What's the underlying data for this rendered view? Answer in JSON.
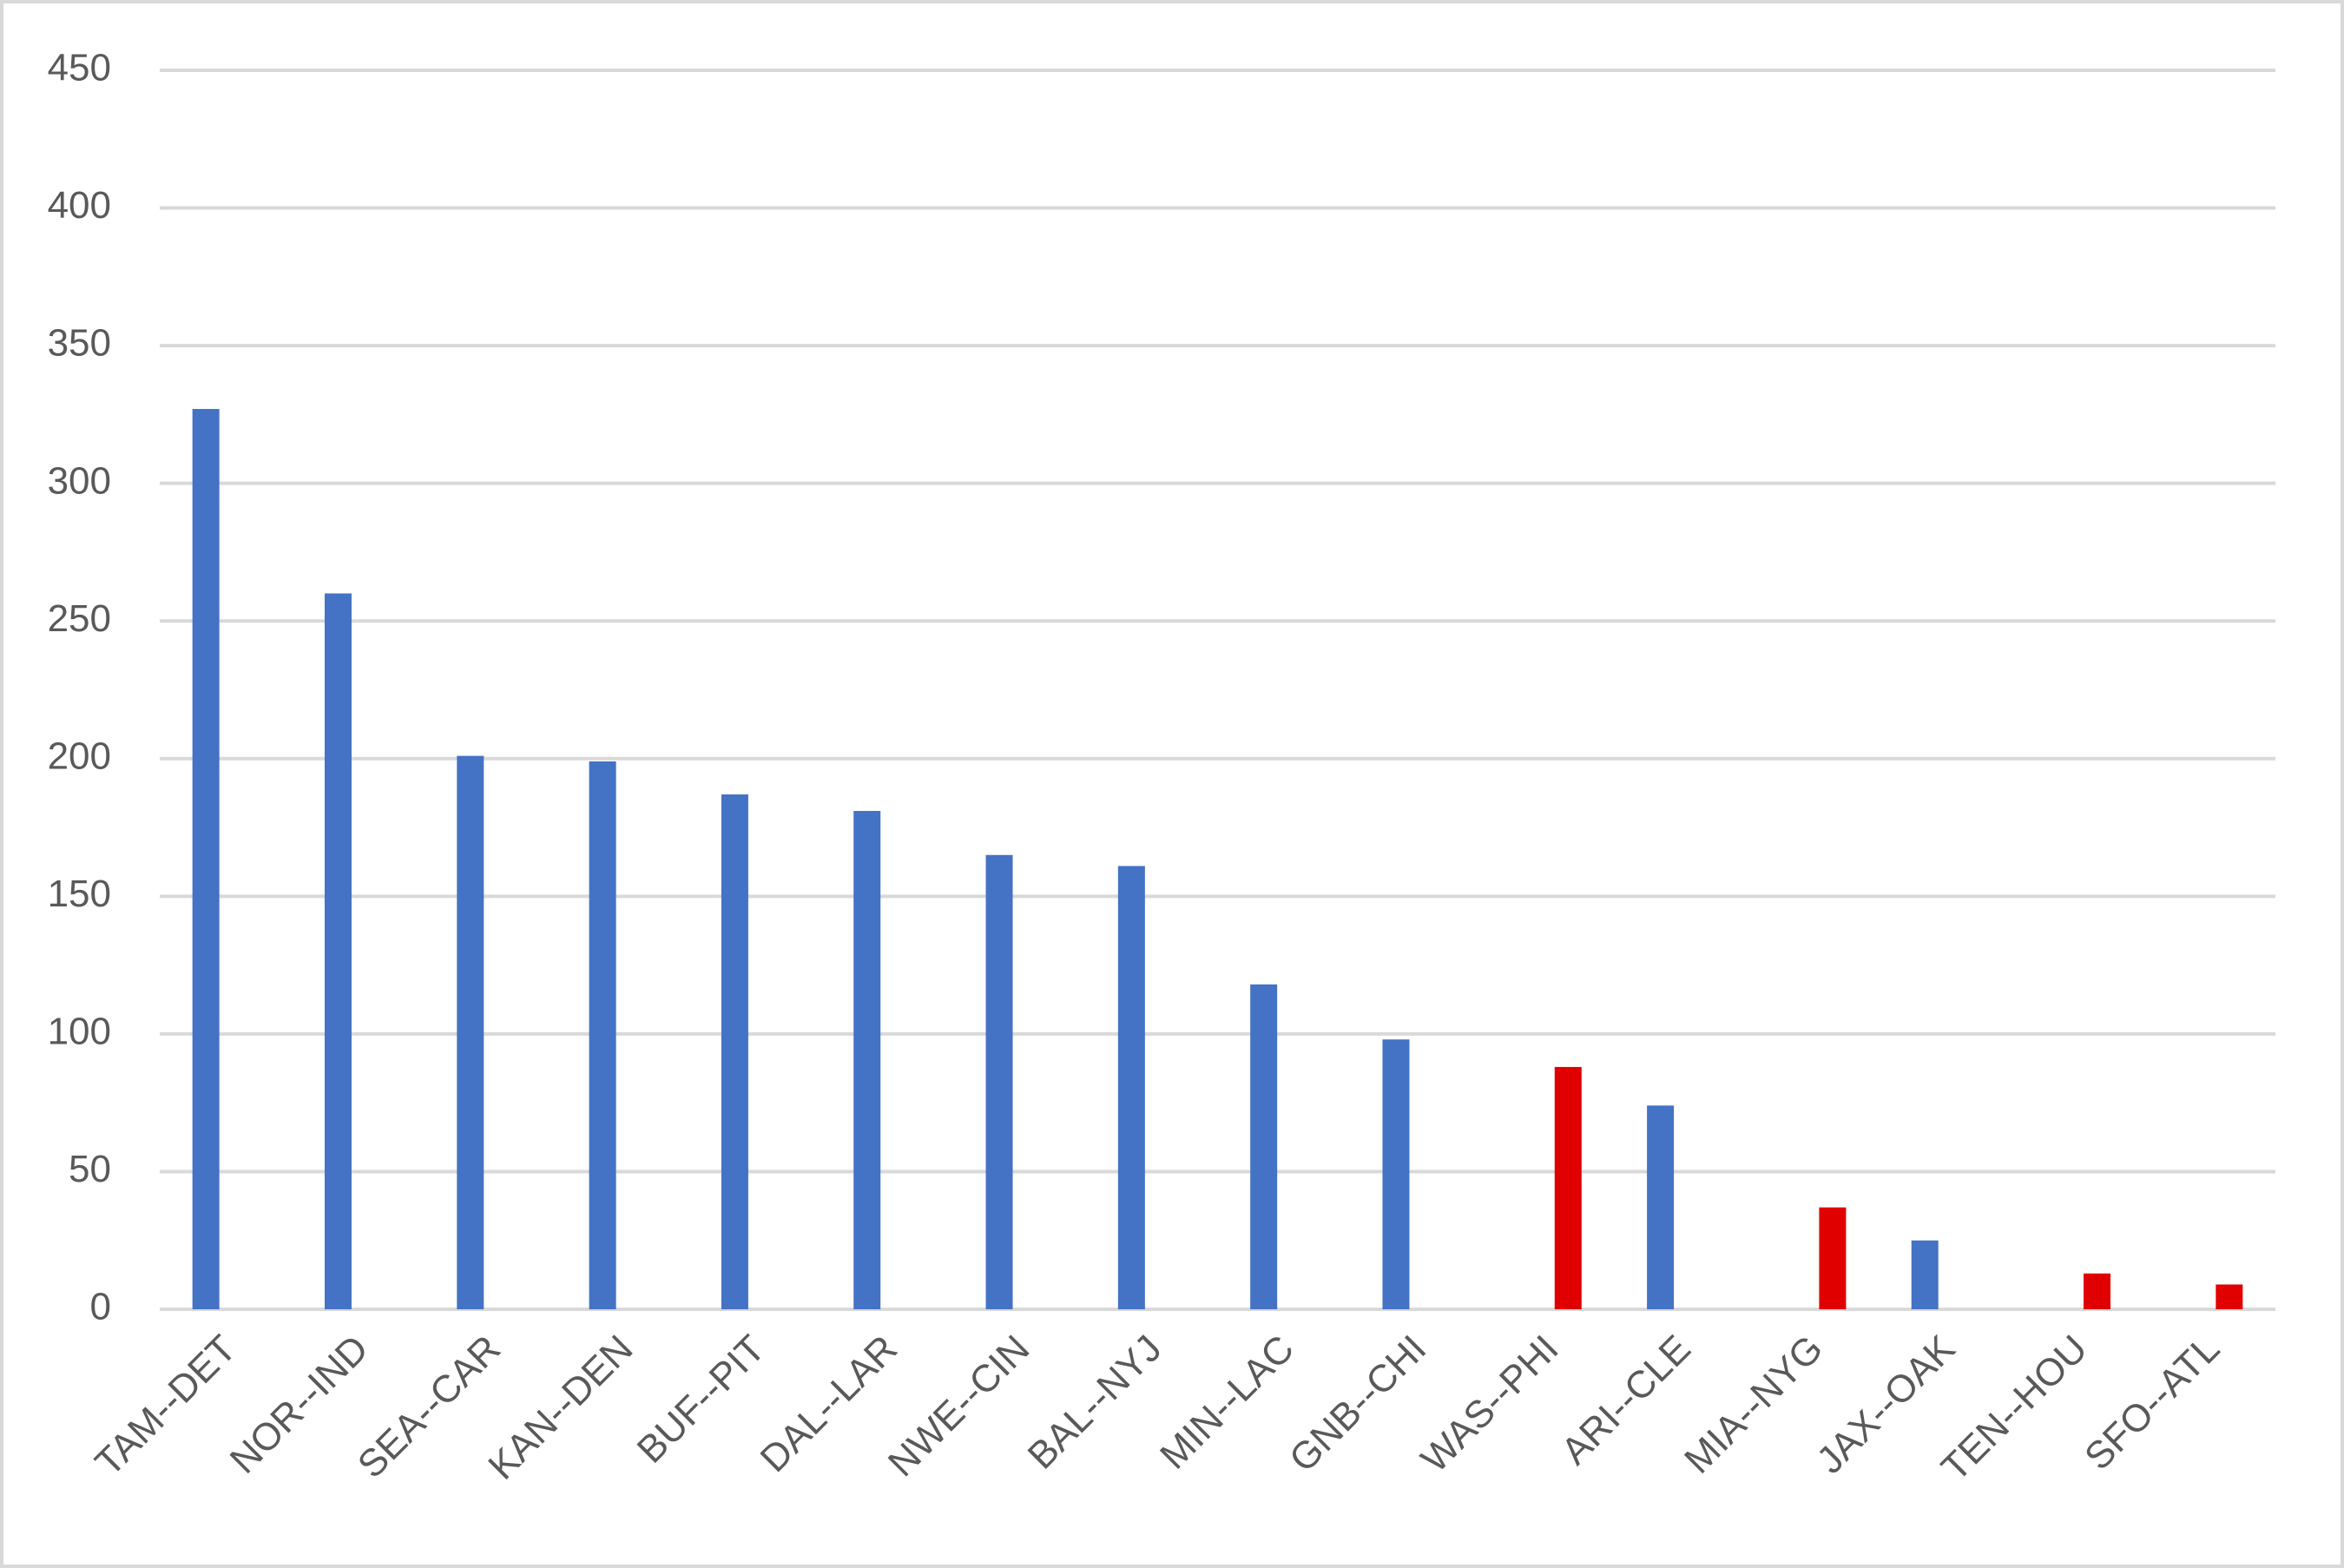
{
  "chart_data": {
    "type": "bar",
    "categories": [
      "TAM--DET",
      "NOR--IND",
      "SEA--CAR",
      "KAN--DEN",
      "BUF--PIT",
      "DAL--LAR",
      "NWE--CIN",
      "BAL--NYJ",
      "MIN--LAC",
      "GNB--CHI",
      "WAS--PHI",
      "ARI--CLE",
      "MIA--NYG",
      "JAX--OAK",
      "TEN--HOU",
      "SFO--ATL"
    ],
    "series": [
      {
        "color": "#4472c4",
        "values": [
          327,
          260,
          201,
          199,
          187,
          181,
          165,
          161,
          118,
          98,
          null,
          74,
          null,
          25,
          null,
          null
        ]
      },
      {
        "color": "#e00000",
        "values": [
          null,
          null,
          null,
          null,
          null,
          null,
          null,
          null,
          null,
          null,
          88,
          null,
          37,
          null,
          13,
          9
        ]
      }
    ],
    "ylim": [
      0,
      450
    ],
    "yticks": [
      0,
      50,
      100,
      150,
      200,
      250,
      300,
      350,
      400,
      450
    ],
    "grid": true
  }
}
